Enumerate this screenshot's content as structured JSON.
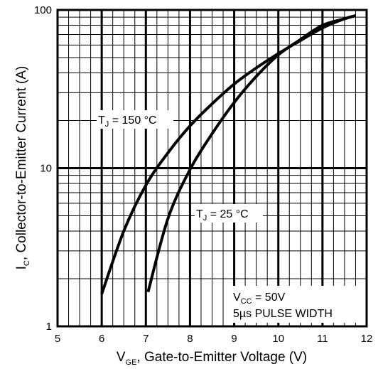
{
  "chart_data": {
    "type": "line",
    "title": "",
    "x_axis": {
      "min": 5,
      "max": 12,
      "scale": "linear",
      "tick_labels": [
        "5",
        "6",
        "7",
        "8",
        "9",
        "10",
        "11",
        "12"
      ],
      "label_main": "V",
      "label_sub": "GE",
      "label_rest": ", Gate-to-Emitter Voltage (V)"
    },
    "y_axis": {
      "min": 1,
      "max": 100,
      "scale": "log",
      "tick_labels": [
        "1",
        "10",
        "100"
      ],
      "label_main": "I",
      "label_sub": "C",
      "label_rest": ",  Collector-to-Emitter Current (A)"
    },
    "grid": "on",
    "series": [
      {
        "label_main": "T",
        "label_sub": "J",
        "label_rest": " = 150 °C",
        "x": [
          6.0,
          6.5,
          7.0,
          7.5,
          8.0,
          8.5,
          9.0,
          9.5,
          10.0,
          10.5,
          11.0,
          11.5,
          11.75
        ],
        "y": [
          1.6,
          4.0,
          7.8,
          12.5,
          18.5,
          25.5,
          34.0,
          43.0,
          53.0,
          64.0,
          77.0,
          88.0,
          92.0
        ]
      },
      {
        "label_main": "T",
        "label_sub": "J",
        "label_rest": " = 25 °C",
        "x": [
          7.05,
          7.5,
          8.0,
          8.5,
          9.0,
          9.5,
          10.0,
          10.5,
          11.0,
          11.5,
          11.75
        ],
        "y": [
          1.65,
          4.8,
          9.8,
          16.5,
          26.0,
          38.0,
          52.0,
          65.0,
          80.0,
          88.0,
          92.0
        ]
      }
    ],
    "annotation_lines": [
      "V",
      "CC",
      " = 50V",
      "5µs PULSE WIDTH"
    ]
  }
}
